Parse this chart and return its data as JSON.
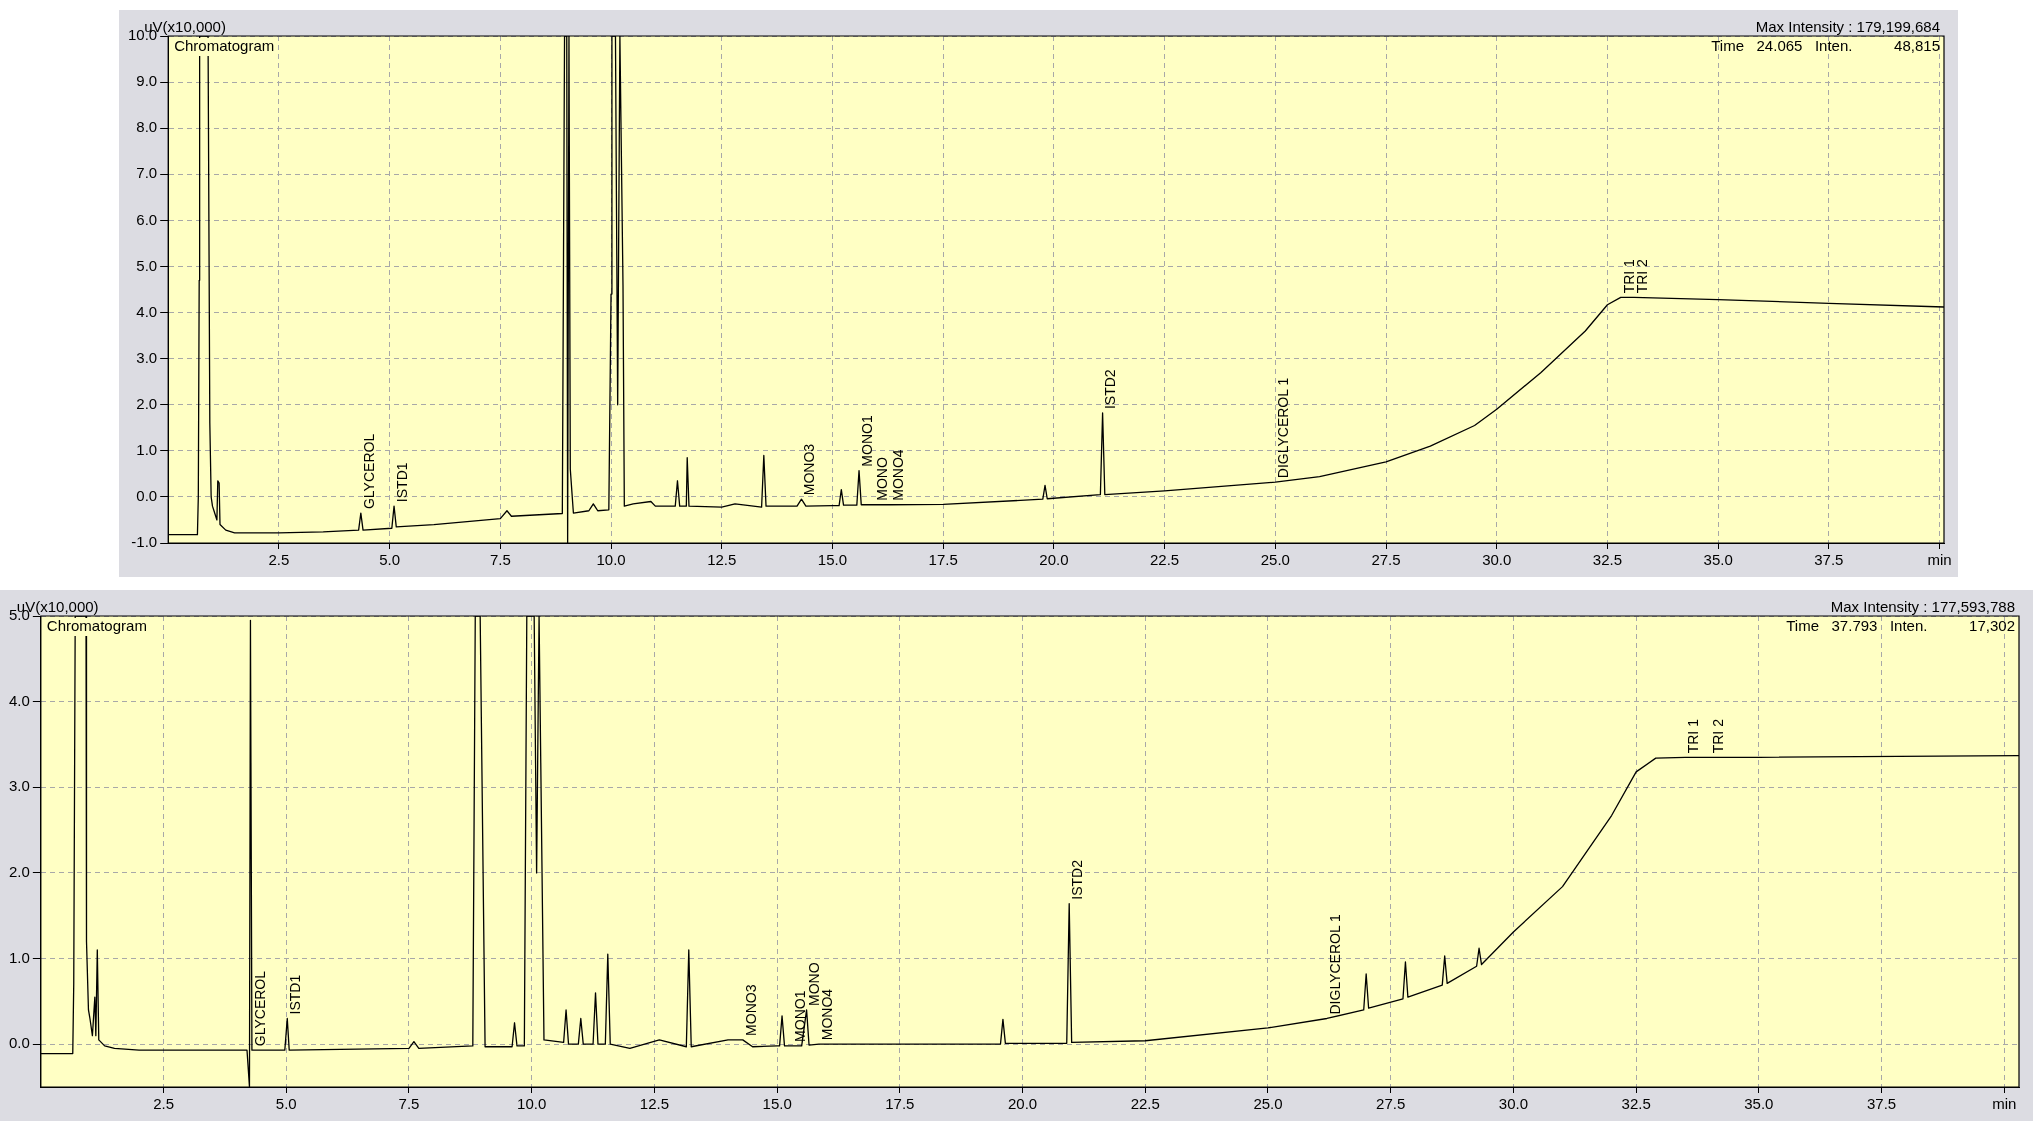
{
  "chart_data": [
    {
      "type": "line",
      "ylabel": "uV(x10,000)",
      "marker": "none",
      "grid": true,
      "legend": false,
      "xlim": [
        0,
        40.1
      ],
      "ylim": [
        -1,
        10
      ],
      "xticks": [
        2.5,
        {
          "value": 5,
          "label": "5.0"
        },
        7.5,
        {
          "value": 10,
          "label": "10.0"
        },
        12.5,
        {
          "value": 15,
          "label": "15.0"
        },
        17.5,
        {
          "value": 20,
          "label": "20.0"
        },
        22.5,
        {
          "value": 25,
          "label": "25.0"
        },
        27.5,
        {
          "value": 30,
          "label": "30.0"
        },
        32.5,
        {
          "value": 35,
          "label": "35.0"
        },
        37.5,
        {
          "value": 40,
          "label": "min"
        }
      ],
      "yticks": [
        {
          "value": -1,
          "label": "-1.0"
        },
        {
          "value": 0,
          "label": "0.0"
        },
        {
          "value": 1,
          "label": "1.0"
        },
        {
          "value": 2,
          "label": "2.0"
        },
        {
          "value": 3,
          "label": "3.0"
        },
        {
          "value": 4,
          "label": "4.0"
        },
        {
          "value": 5,
          "label": "5.0"
        },
        {
          "value": 6,
          "label": "6.0"
        },
        {
          "value": 7,
          "label": "7.0"
        },
        {
          "value": 8,
          "label": "8.0"
        },
        {
          "value": 9,
          "label": "9.0"
        },
        {
          "value": 10,
          "label": "10.0"
        }
      ],
      "series": [
        {
          "color": "#000000",
          "x": [
            0,
            0.66,
            0.68,
            0.7,
            0.71,
            0.9,
            0.94,
            0.97,
            1.0,
            1.1,
            1.12,
            1.15,
            1.17,
            1.3,
            1.5,
            2.5,
            3.5,
            4.3,
            4.35,
            4.4,
            5.05,
            5.1,
            5.15,
            6.0,
            7.5,
            7.65,
            7.75,
            8.9,
            8.95,
            9.0,
            9.02,
            9.05,
            9.08,
            9.15,
            9.5,
            9.6,
            9.7,
            9.95,
            10.0,
            10.02,
            10.1,
            10.15,
            10.2,
            10.27,
            10.3,
            10.5,
            10.9,
            11.0,
            11.45,
            11.5,
            11.55,
            11.7,
            11.72,
            11.76,
            12.5,
            12.8,
            13.4,
            13.45,
            13.5,
            14.2,
            14.3,
            14.4,
            15.0,
            15.15,
            15.2,
            15.25,
            15.35,
            15.55,
            15.6,
            15.65,
            15.7,
            15.95,
            16.1,
            16.3,
            17.5,
            19.75,
            19.8,
            19.85,
            21.05,
            21.1,
            21.15,
            22.5,
            25,
            26,
            27.5,
            28.5,
            29.5,
            30,
            31,
            32,
            32.5,
            32.8,
            33.1,
            35,
            37.5,
            40.1
          ],
          "values": [
            -0.82,
            -0.82,
            0,
            4.7,
            10,
            10,
            1.6,
            0,
            -0.2,
            -0.5,
            0.35,
            0.3,
            -0.6,
            -0.72,
            -0.78,
            -0.78,
            -0.76,
            -0.72,
            -0.35,
            -0.72,
            -0.68,
            -0.2,
            -0.65,
            -0.6,
            -0.47,
            -0.3,
            -0.42,
            -0.36,
            10,
            10,
            -1.0,
            10,
            0.6,
            -0.35,
            -0.3,
            -0.15,
            -0.3,
            -0.28,
            4.4,
            10,
            10,
            2,
            10,
            4.6,
            -0.2,
            -0.15,
            -0.1,
            -0.2,
            -0.2,
            0.35,
            -0.2,
            -0.2,
            0.85,
            -0.2,
            -0.22,
            -0.15,
            -0.22,
            0.9,
            -0.2,
            -0.2,
            -0.05,
            -0.2,
            -0.19,
            -0.19,
            0.16,
            -0.18,
            -0.18,
            -0.18,
            0.57,
            -0.17,
            -0.17,
            -0.17,
            -0.17,
            -0.17,
            -0.16,
            -0.05,
            0.25,
            -0.04,
            0.05,
            1.82,
            0.05,
            0.13,
            0.32,
            0.44,
            0.76,
            1.1,
            1.55,
            1.9,
            2.7,
            3.6,
            4.17,
            4.33,
            4.33,
            4.28,
            4.2,
            4.12
          ]
        }
      ],
      "annotations": [
        "Chromatogram",
        "Max Intensity : 179,199,684",
        "Time   24.065   Inten.          48,815",
        {
          "text": "GLYCEROL",
          "x": 4.35,
          "y": -0.35
        },
        {
          "text": "ISTD1",
          "x": 5.1,
          "y": -0.2
        },
        {
          "text": "MONO3",
          "x": 14.3,
          "y": -0.05
        },
        {
          "text": "MONO1",
          "x": 15.6,
          "y": 0.57
        },
        {
          "text": "MONO",
          "x": 15.95,
          "y": -0.17
        },
        {
          "text": "MONO4",
          "x": 16.3,
          "y": -0.17
        },
        {
          "text": "ISTD2",
          "x": 21.1,
          "y": 1.82
        },
        {
          "text": "DIGLYCEROL 1",
          "x": 25,
          "y": 0.32
        },
        {
          "text": "TRI 1",
          "x": 32.8,
          "y": 4.33
        },
        {
          "text": "TRI 2",
          "x": 33.1,
          "y": 4.33
        }
      ]
    },
    {
      "type": "line",
      "ylabel": "uV(x10,000)",
      "marker": "none",
      "grid": true,
      "legend": false,
      "xlim": [
        0,
        40.3
      ],
      "ylim": [
        -0.5,
        5
      ],
      "xticks": [
        2.5,
        {
          "value": 5,
          "label": "5.0"
        },
        7.5,
        {
          "value": 10,
          "label": "10.0"
        },
        12.5,
        {
          "value": 15,
          "label": "15.0"
        },
        17.5,
        {
          "value": 20,
          "label": "20.0"
        },
        22.5,
        {
          "value": 25,
          "label": "25.0"
        },
        27.5,
        {
          "value": 30,
          "label": "30.0"
        },
        32.5,
        {
          "value": 35,
          "label": "35.0"
        },
        37.5,
        {
          "value": 40,
          "label": "min"
        }
      ],
      "yticks": [
        {
          "value": 0,
          "label": "0.0"
        },
        {
          "value": 1,
          "label": "1.0"
        },
        {
          "value": 2,
          "label": "2.0"
        },
        {
          "value": 3,
          "label": "3.0"
        },
        {
          "value": 4,
          "label": "4.0"
        },
        {
          "value": 5,
          "label": "5.0"
        }
      ],
      "series": [
        {
          "color": "#000000",
          "x": [
            0,
            0.65,
            0.67,
            0.7,
            0.92,
            0.93,
            0.97,
            1.0,
            1.05,
            1.1,
            1.12,
            1.15,
            1.18,
            1.3,
            1.5,
            2.0,
            4.2,
            4.25,
            4.27,
            4.3,
            4.97,
            5.02,
            5.06,
            7.5,
            7.6,
            7.7,
            8.8,
            8.85,
            8.95,
            9.05,
            9.6,
            9.65,
            9.7,
            9.85,
            9.9,
            10.05,
            10.1,
            10.15,
            10.25,
            10.65,
            10.7,
            10.75,
            10.95,
            11.0,
            11.05,
            11.25,
            11.3,
            11.35,
            11.5,
            11.55,
            11.6,
            12.0,
            12.6,
            13.15,
            13.2,
            13.25,
            14.0,
            14.3,
            14.5,
            15.0,
            15.05,
            15.1,
            15.15,
            15.3,
            15.5,
            15.6,
            15.65,
            15.85,
            17.0,
            19.55,
            19.6,
            19.65,
            20.9,
            20.95,
            21.0,
            22.5,
            25,
            26.2,
            26.95,
            27.0,
            27.05,
            27.75,
            27.8,
            27.85,
            28.55,
            28.6,
            28.65,
            29.25,
            29.3,
            29.35,
            30,
            31,
            32,
            32.5,
            32.9,
            33.5,
            34.0,
            35,
            40.3
          ],
          "values": [
            -0.11,
            -0.11,
            0.7,
            5,
            5,
            1.2,
            0.4,
            0.3,
            0.1,
            0.55,
            0.1,
            1.1,
            0.05,
            -0.02,
            -0.05,
            -0.07,
            -0.07,
            -0.5,
            4.95,
            -0.07,
            -0.07,
            0.3,
            -0.07,
            -0.05,
            0.03,
            -0.05,
            -0.02,
            5,
            5,
            -0.03,
            -0.03,
            0.25,
            -0.02,
            -0.02,
            5,
            5,
            2,
            5,
            0.05,
            0.02,
            0.4,
            0,
            0,
            0.3,
            0,
            0,
            0.6,
            0,
            0,
            1.05,
            0,
            -0.05,
            0.05,
            -0.03,
            1.1,
            -0.03,
            0.05,
            0.05,
            -0.03,
            -0.02,
            -0.02,
            0.33,
            -0.02,
            -0.02,
            -0.02,
            0.4,
            -0.01,
            0,
            0,
            0,
            0.29,
            0.01,
            0.01,
            1.64,
            0.02,
            0.04,
            0.19,
            0.3,
            0.4,
            0.82,
            0.42,
            0.53,
            0.96,
            0.55,
            0.69,
            1.03,
            0.71,
            0.91,
            1.12,
            0.93,
            1.31,
            1.84,
            2.67,
            3.18,
            3.34,
            3.35,
            3.35,
            3.35,
            3.37
          ]
        }
      ],
      "annotations": [
        "Chromatogram",
        "Max Intensity : 177,593,788",
        "Time   37.793   Inten.          17,302",
        {
          "text": "GLYCEROL",
          "x": 4.3,
          "y": -0.07
        },
        {
          "text": "ISTD1",
          "x": 5.02,
          "y": 0.3
        },
        {
          "text": "MONO3",
          "x": 14.3,
          "y": 0.05
        },
        {
          "text": "MONO1",
          "x": 15.3,
          "y": -0.02
        },
        {
          "text": "MONO",
          "x": 15.6,
          "y": 0.4
        },
        {
          "text": "MONO4",
          "x": 15.85,
          "y": 0
        },
        {
          "text": "ISTD2",
          "x": 20.95,
          "y": 1.64
        },
        {
          "text": "DIGLYCEROL 1",
          "x": 26.2,
          "y": 0.3
        },
        {
          "text": "TRI 1",
          "x": 33.5,
          "y": 3.35
        },
        {
          "text": "TRI 2",
          "x": 34.0,
          "y": 3.35
        }
      ]
    }
  ]
}
